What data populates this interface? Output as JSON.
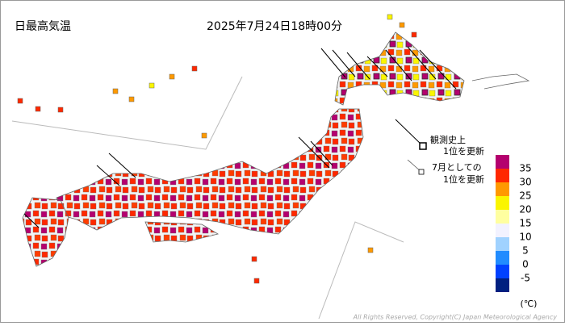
{
  "title": "日最高気温",
  "datetime": "2025年7月24日18時00分",
  "annotations": [
    {
      "lines": [
        "観測史上",
        "1位を更新"
      ]
    },
    {
      "lines": [
        "7月としての",
        "1位を更新"
      ]
    }
  ],
  "legend": {
    "unit": "(℃)",
    "thresholds": [
      35,
      30,
      25,
      20,
      15,
      10,
      5,
      0,
      -5
    ],
    "colors": [
      "#b4006e",
      "#ff2800",
      "#ff9900",
      "#faf500",
      "#ffffa0",
      "#f2f2ff",
      "#a0d2ff",
      "#218cff",
      "#0041ff",
      "#002080"
    ]
  },
  "copyright": "All Rights Reserved, Copyright(C) Japan Meteorological Agency"
}
